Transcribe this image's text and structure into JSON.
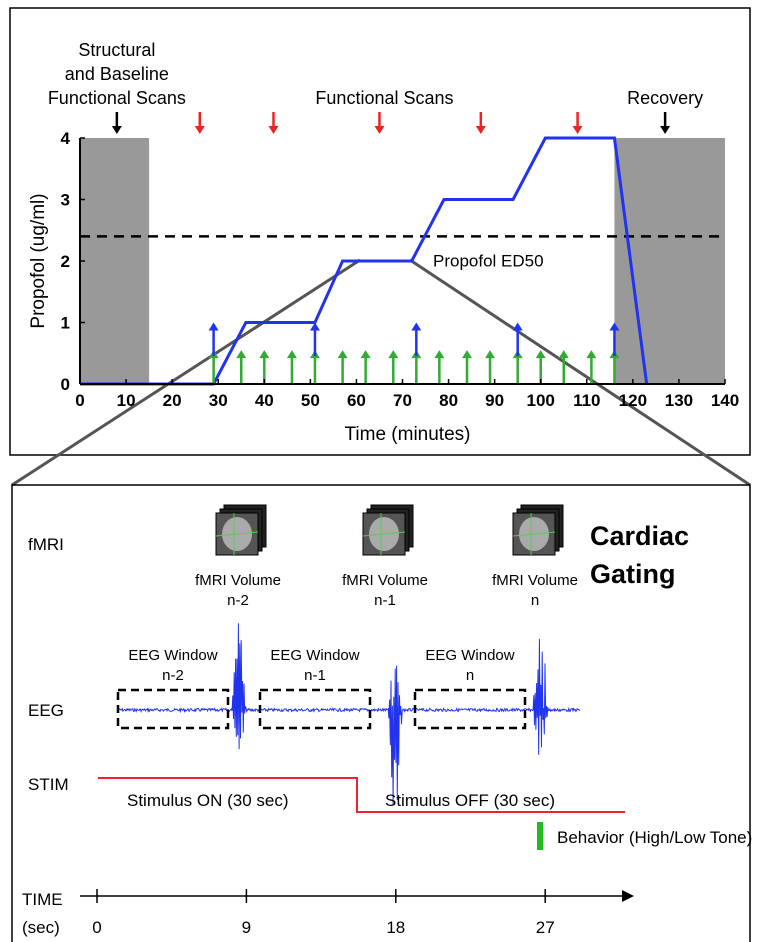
{
  "chart_data": {
    "type": "line",
    "xlabel": "Time (minutes)",
    "ylabel": "Propofol  (ug/ml)",
    "x": [
      0,
      29,
      36,
      51,
      57,
      72,
      79,
      94,
      101,
      116,
      123
    ],
    "series": [
      {
        "name": "Propofol",
        "color": "#2233ee",
        "values": [
          0,
          0,
          1,
          1,
          2,
          2,
          3,
          3,
          4,
          4,
          0
        ]
      }
    ],
    "xlim": [
      0,
      140
    ],
    "xticks": [
      0,
      10,
      20,
      30,
      40,
      50,
      60,
      70,
      80,
      90,
      100,
      110,
      120,
      130,
      140
    ],
    "ylim": [
      0,
      4
    ],
    "yticks": [
      0,
      1,
      2,
      3,
      4
    ],
    "shaded": [
      {
        "x": [
          0,
          15
        ],
        "color": "#999999"
      },
      {
        "x": [
          116,
          140
        ],
        "color": "#999999"
      }
    ],
    "reference_line": {
      "value": 2.4,
      "label": "Propofol  ED50"
    },
    "annotations": [
      {
        "lines": [
          "Structural",
          "and Baseline",
          "Functional Scans"
        ],
        "x": 8,
        "color": "#000000"
      },
      {
        "lines": [
          "Functional Scans"
        ],
        "x": 65,
        "color": "#ee2222"
      },
      {
        "lines": [
          "Recovery"
        ],
        "x": 127,
        "color": "#000000"
      }
    ],
    "scan_arrows": [
      {
        "x": 26,
        "color": "#ee2222"
      },
      {
        "x": 42,
        "color": "#ee2222"
      },
      {
        "x": 87,
        "color": "#ee2222"
      },
      {
        "x": 108,
        "color": "#ee2222"
      }
    ],
    "blue_arrows": {
      "color": "#2233ee",
      "x": [
        29,
        51,
        73,
        95,
        116
      ]
    },
    "green_arrows": {
      "color": "#33aa33",
      "x": [
        29,
        35,
        40,
        46,
        51,
        57,
        62,
        68,
        73,
        78,
        84,
        89,
        95,
        100,
        105,
        111,
        116
      ]
    }
  },
  "diagram": {
    "rows": {
      "fmri": "fMRI",
      "eeg": "EEG",
      "stim": "STIM",
      "time": [
        "TIME",
        "(sec)"
      ]
    },
    "title": [
      "Cardiac",
      "Gating"
    ],
    "volumes": [
      [
        "fMRI Volume",
        "n-2"
      ],
      [
        "fMRI Volume",
        "n-1"
      ],
      [
        "fMRI Volume",
        "n"
      ]
    ],
    "windows": [
      [
        "EEG Window",
        "n-2"
      ],
      [
        "EEG Window",
        "n-1"
      ],
      [
        "EEG Window",
        "n"
      ]
    ],
    "stimulus_on": "Stimulus ON (30 sec)",
    "stimulus_off": "Stimulus OFF (30 sec)",
    "behavior": "Behavior (High/Low Tone)",
    "time_ticks": [
      0,
      9,
      18,
      27
    ]
  }
}
